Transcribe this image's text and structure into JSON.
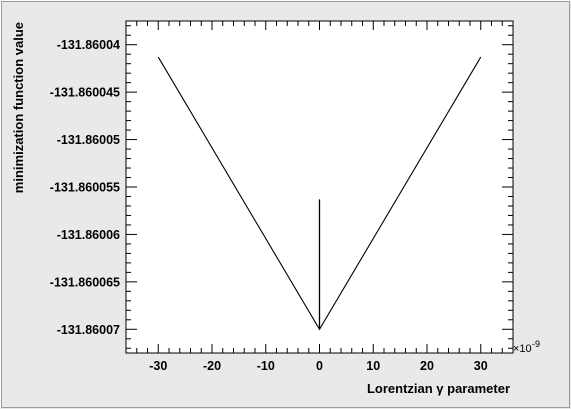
{
  "chart_data": {
    "type": "line",
    "title": "",
    "xlabel": "Lorentzian γ parameter",
    "ylabel": "minimization function value",
    "x_multiplier_label": "×10",
    "x_multiplier_exponent": "-9",
    "xlim": [
      -36,
      36
    ],
    "ylim": [
      -131.8600725,
      -131.8600375
    ],
    "x_ticks": [
      -30,
      -20,
      -10,
      0,
      10,
      20,
      30
    ],
    "x_tick_labels": [
      "-30",
      "-20",
      "-10",
      "0",
      "10",
      "20",
      "30"
    ],
    "y_ticks": [
      -131.86007,
      -131.860065,
      -131.86006,
      -131.860055,
      -131.86005,
      -131.860045,
      -131.86004
    ],
    "y_tick_labels": [
      "-131.86007",
      "-131.860065",
      "-131.86006",
      "-131.860055",
      "-131.86005",
      "-131.860045",
      "-131.86004"
    ],
    "grid": false,
    "series": [
      {
        "x": [
          -30,
          0,
          30
        ],
        "y": [
          -131.8600413,
          -131.86007,
          -131.8600413
        ]
      },
      {
        "x": [
          0,
          0,
          0,
          0,
          0
        ],
        "y": [
          -131.8600563,
          -131.86007,
          -131.8600595,
          -131.86007,
          -131.86007
        ]
      }
    ]
  }
}
